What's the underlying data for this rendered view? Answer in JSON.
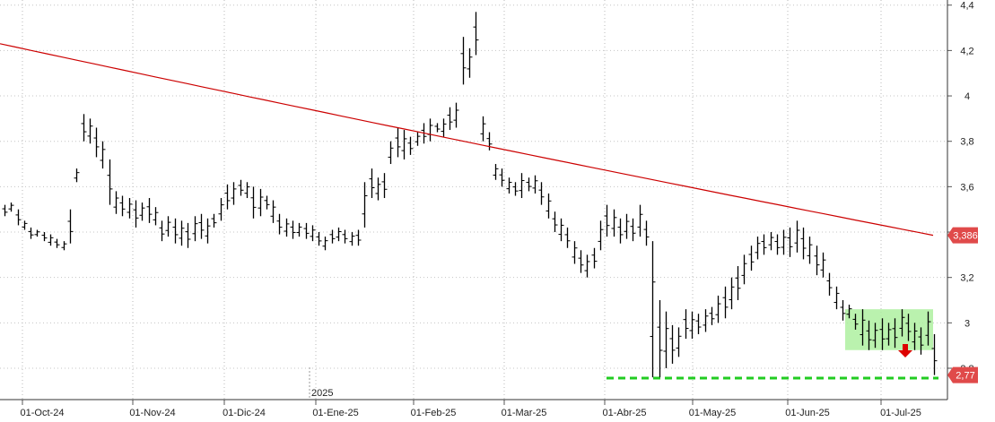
{
  "chart_data": {
    "type": "ohlc",
    "title": "",
    "xlabel": "",
    "ylabel": "",
    "ylim": [
      2.6,
      4.4
    ],
    "yticks": [
      "4,4",
      "4,2",
      "4",
      "3,8",
      "3,6",
      "3,4",
      "3,2",
      "3",
      "2,8"
    ],
    "ytick_values": [
      4.4,
      4.2,
      4.0,
      3.8,
      3.6,
      3.4,
      3.2,
      3.0,
      2.8
    ],
    "x_ticks": [
      "01-Oct-24",
      "01-Nov-24",
      "01-Dic-24",
      "01-Ene-25",
      "01-Feb-25",
      "01-Mar-25",
      "01-Abr-25",
      "01-May-25",
      "01-Jun-25",
      "01-Jul-25"
    ],
    "year_marker": "2025",
    "grid": true,
    "series": [
      {
        "kind": "ohlc",
        "color": "#000000",
        "bars": [
          [
            3.52,
            3.47
          ],
          [
            3.53,
            3.49
          ],
          [
            3.5,
            3.43
          ],
          [
            3.45,
            3.41
          ],
          [
            3.42,
            3.37
          ],
          [
            3.41,
            3.38
          ],
          [
            3.4,
            3.36
          ],
          [
            3.39,
            3.34
          ],
          [
            3.37,
            3.33
          ],
          [
            3.36,
            3.32
          ],
          [
            3.5,
            3.35
          ],
          [
            3.68,
            3.62
          ],
          [
            3.92,
            3.8
          ],
          [
            3.9,
            3.79
          ],
          [
            3.86,
            3.73
          ],
          [
            3.8,
            3.68
          ],
          [
            3.72,
            3.52
          ],
          [
            3.58,
            3.48
          ],
          [
            3.56,
            3.47
          ],
          [
            3.55,
            3.46
          ],
          [
            3.54,
            3.42
          ],
          [
            3.53,
            3.45
          ],
          [
            3.55,
            3.44
          ],
          [
            3.51,
            3.43
          ],
          [
            3.45,
            3.36
          ],
          [
            3.47,
            3.38
          ],
          [
            3.46,
            3.35
          ],
          [
            3.45,
            3.34
          ],
          [
            3.44,
            3.33
          ],
          [
            3.47,
            3.36
          ],
          [
            3.48,
            3.37
          ],
          [
            3.46,
            3.35
          ],
          [
            3.48,
            3.42
          ],
          [
            3.55,
            3.45
          ],
          [
            3.61,
            3.5
          ],
          [
            3.62,
            3.52
          ],
          [
            3.63,
            3.56
          ],
          [
            3.62,
            3.55
          ],
          [
            3.6,
            3.46
          ],
          [
            3.59,
            3.47
          ],
          [
            3.56,
            3.5
          ],
          [
            3.54,
            3.44
          ],
          [
            3.48,
            3.39
          ],
          [
            3.46,
            3.38
          ],
          [
            3.45,
            3.37
          ],
          [
            3.44,
            3.38
          ],
          [
            3.44,
            3.37
          ],
          [
            3.43,
            3.36
          ],
          [
            3.4,
            3.34
          ],
          [
            3.38,
            3.32
          ],
          [
            3.41,
            3.35
          ],
          [
            3.42,
            3.36
          ],
          [
            3.41,
            3.35
          ],
          [
            3.4,
            3.34
          ],
          [
            3.41,
            3.34
          ],
          [
            3.62,
            3.42
          ],
          [
            3.68,
            3.55
          ],
          [
            3.64,
            3.54
          ],
          [
            3.66,
            3.55
          ],
          [
            3.8,
            3.7
          ],
          [
            3.86,
            3.73
          ],
          [
            3.85,
            3.72
          ],
          [
            3.82,
            3.74
          ],
          [
            3.84,
            3.78
          ],
          [
            3.88,
            3.79
          ],
          [
            3.9,
            3.8
          ],
          [
            3.88,
            3.84
          ],
          [
            3.9,
            3.82
          ],
          [
            3.95,
            3.85
          ],
          [
            3.97,
            3.86
          ],
          [
            4.26,
            4.05
          ],
          [
            4.21,
            4.08
          ],
          [
            4.37,
            4.18
          ],
          [
            3.91,
            3.8
          ],
          [
            3.84,
            3.76
          ],
          [
            3.7,
            3.63
          ],
          [
            3.68,
            3.6
          ],
          [
            3.64,
            3.57
          ],
          [
            3.62,
            3.56
          ],
          [
            3.66,
            3.55
          ],
          [
            3.64,
            3.58
          ],
          [
            3.65,
            3.57
          ],
          [
            3.62,
            3.52
          ],
          [
            3.57,
            3.46
          ],
          [
            3.49,
            3.4
          ],
          [
            3.46,
            3.36
          ],
          [
            3.42,
            3.33
          ],
          [
            3.36,
            3.26
          ],
          [
            3.32,
            3.22
          ],
          [
            3.3,
            3.2
          ],
          [
            3.33,
            3.24
          ],
          [
            3.45,
            3.32
          ],
          [
            3.52,
            3.38
          ],
          [
            3.5,
            3.38
          ],
          [
            3.46,
            3.35
          ],
          [
            3.48,
            3.37
          ],
          [
            3.46,
            3.36
          ],
          [
            3.52,
            3.38
          ],
          [
            3.45,
            3.34
          ],
          [
            3.36,
            2.76
          ],
          [
            3.1,
            2.76
          ],
          [
            3.05,
            2.8
          ],
          [
            2.99,
            2.82
          ],
          [
            2.98,
            2.85
          ],
          [
            3.06,
            2.93
          ],
          [
            3.05,
            2.93
          ],
          [
            3.04,
            2.95
          ],
          [
            3.06,
            2.96
          ],
          [
            3.07,
            2.99
          ],
          [
            3.12,
            3.0
          ],
          [
            3.16,
            3.02
          ],
          [
            3.2,
            3.06
          ],
          [
            3.25,
            3.1
          ],
          [
            3.3,
            3.17
          ],
          [
            3.34,
            3.23
          ],
          [
            3.38,
            3.28
          ],
          [
            3.39,
            3.3
          ],
          [
            3.4,
            3.32
          ],
          [
            3.39,
            3.3
          ],
          [
            3.41,
            3.3
          ],
          [
            3.42,
            3.29
          ],
          [
            3.45,
            3.31
          ],
          [
            3.42,
            3.28
          ],
          [
            3.38,
            3.26
          ],
          [
            3.34,
            3.21
          ],
          [
            3.31,
            3.2
          ],
          [
            3.22,
            3.12
          ],
          [
            3.16,
            3.06
          ],
          [
            3.1,
            3.01
          ],
          [
            3.08,
            3.02
          ],
          [
            3.04,
            2.97
          ],
          [
            3.06,
            2.9
          ],
          [
            3.01,
            2.88
          ],
          [
            3.0,
            2.89
          ],
          [
            3.02,
            2.88
          ],
          [
            3.0,
            2.9
          ],
          [
            3.02,
            2.89
          ],
          [
            3.06,
            2.94
          ],
          [
            3.04,
            2.92
          ],
          [
            3.0,
            2.88
          ],
          [
            2.98,
            2.86
          ],
          [
            3.05,
            2.9
          ],
          [
            2.95,
            2.77
          ]
        ]
      },
      {
        "kind": "line",
        "color": "#cc0000",
        "values": [
          4.23,
          3.386
        ]
      }
    ],
    "price_tags": [
      {
        "label": "3,386",
        "value": 3.386,
        "color": "#e04a4a"
      },
      {
        "label": "2,77",
        "value": 2.77,
        "color": "#e04a4a"
      }
    ],
    "annotations": {
      "support_line": {
        "value": 2.75,
        "color": "#22cc22",
        "style": "dashed"
      },
      "consolidation_box": {
        "from_value": 2.88,
        "to_value": 3.06,
        "color": "#aef0a0"
      },
      "down_arrow": {
        "color": "#dd0000"
      }
    }
  }
}
